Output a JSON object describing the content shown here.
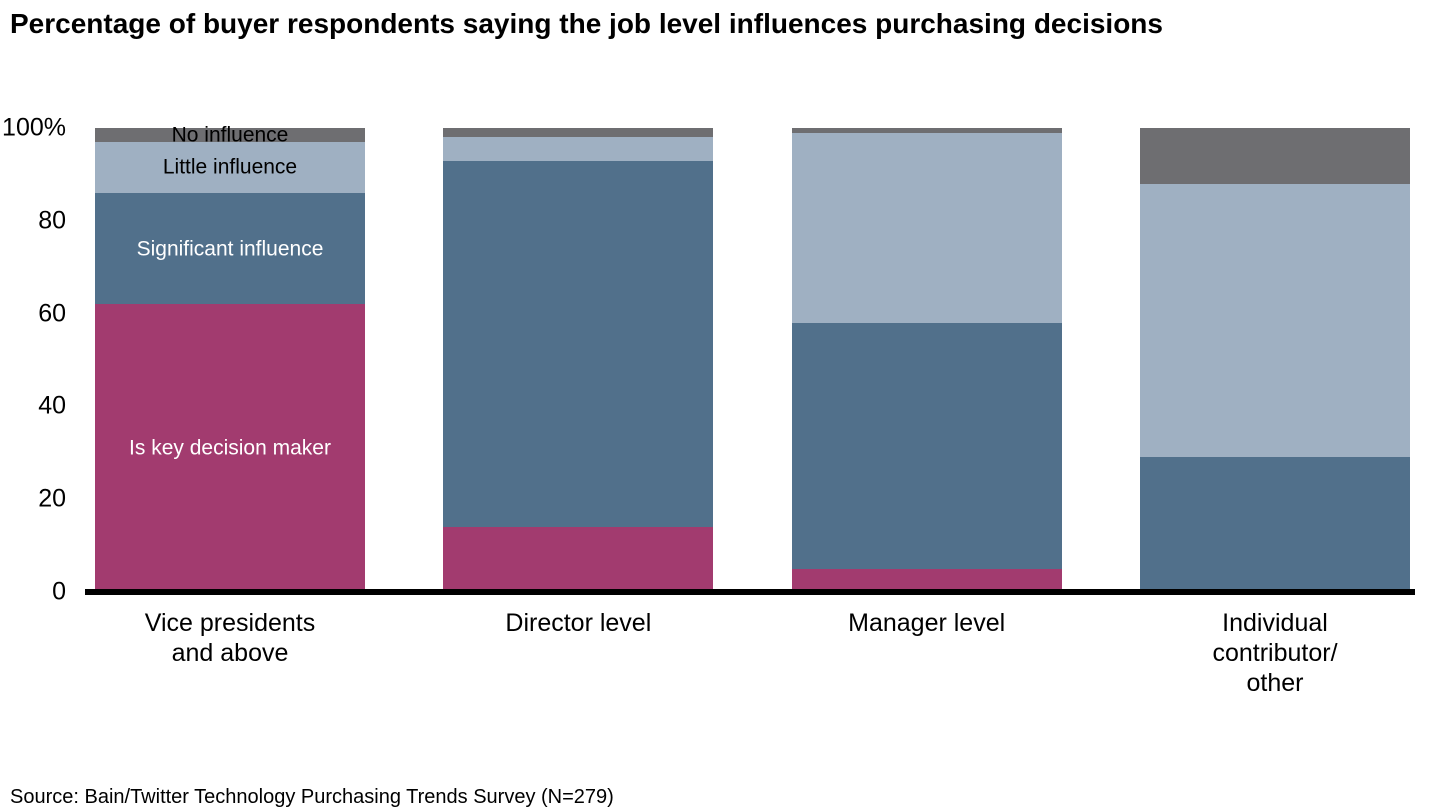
{
  "title": "Percentage of buyer respondents saying the job level influences purchasing decisions",
  "source": "Source: Bain/Twitter Technology Purchasing Trends Survey (N=279)",
  "chart_data": {
    "type": "bar",
    "stacked": true,
    "grid": false,
    "legend_position": "inside-first-bar",
    "categories": [
      "Vice presidents\nand above",
      "Director level",
      "Manager level",
      "Individual contributor/\nother"
    ],
    "series": [
      {
        "name": "Is key decision maker",
        "color": "#a23b6f",
        "label_color": "#ffffff",
        "values": [
          62,
          14,
          5,
          0
        ]
      },
      {
        "name": "Significant influence",
        "color": "#51708b",
        "label_color": "#ffffff",
        "values": [
          24,
          79,
          53,
          29
        ]
      },
      {
        "name": "Little influence",
        "color": "#9fb0c2",
        "label_color": "#000000",
        "values": [
          11,
          5,
          41,
          59
        ]
      },
      {
        "name": "No influence",
        "color": "#6e6e71",
        "label_color": "#000000",
        "values": [
          3,
          2,
          1,
          12
        ]
      }
    ],
    "ylabel": "",
    "xlabel": "",
    "ylim": [
      0,
      100
    ],
    "yticks": [
      {
        "value": 100,
        "label": "100%"
      },
      {
        "value": 80,
        "label": "80"
      },
      {
        "value": 60,
        "label": "60"
      },
      {
        "value": 40,
        "label": "40"
      },
      {
        "value": 20,
        "label": "20"
      },
      {
        "value": 0,
        "label": "0"
      }
    ]
  }
}
